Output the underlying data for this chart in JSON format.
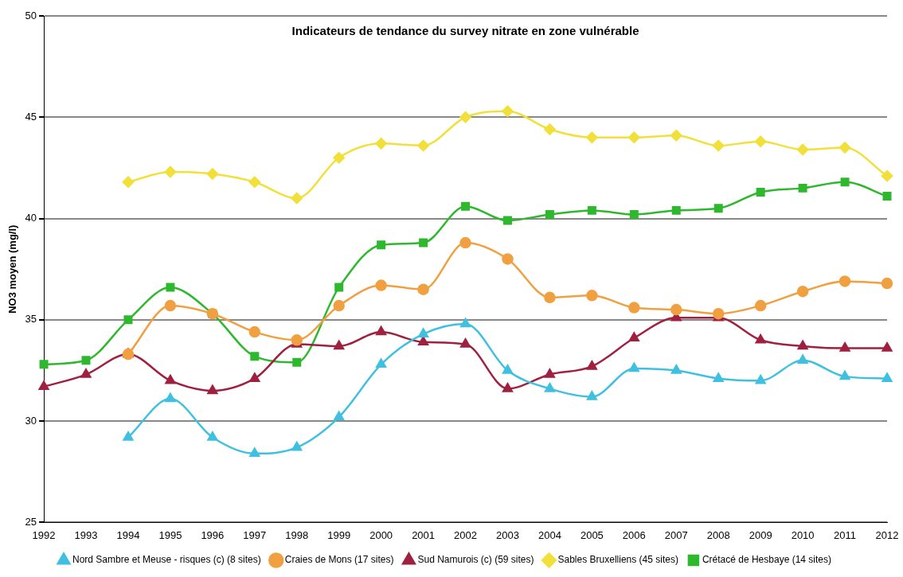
{
  "chart_data": {
    "type": "line",
    "title": "Indicateurs de tendance du survey nitrate en zone vulnérable",
    "ylabel": "NO3 moyen (mg/l)",
    "categories": [
      "1992",
      "1993",
      "1994",
      "1995",
      "1996",
      "1997",
      "1998",
      "1999",
      "2000",
      "2001",
      "2002",
      "2003",
      "2004",
      "2005",
      "2006",
      "2007",
      "2008",
      "2009",
      "2010",
      "2011",
      "2012"
    ],
    "series": [
      {
        "name": "Crétacé de Hesbaye (14 sites)",
        "color": "#2eb82e",
        "marker": "square",
        "values": [
          32.8,
          33.0,
          35.0,
          36.6,
          35.3,
          33.2,
          32.9,
          36.6,
          38.7,
          38.8,
          40.6,
          39.9,
          40.2,
          40.4,
          40.2,
          40.4,
          40.5,
          41.3,
          41.5,
          41.8,
          41.1
        ]
      },
      {
        "name": "Sables Bruxelliens (45 sites)",
        "color": "#f2e03a",
        "marker": "diamond",
        "values": [
          null,
          null,
          41.8,
          42.3,
          42.2,
          41.8,
          41.0,
          43.0,
          43.7,
          43.6,
          45.0,
          45.3,
          44.4,
          44.0,
          44.0,
          44.1,
          43.6,
          43.8,
          43.4,
          43.5,
          42.1
        ]
      },
      {
        "name": "Sud Namurois (c) (59 sites)",
        "color": "#a02040",
        "marker": "triangle",
        "values": [
          31.7,
          32.3,
          33.3,
          32.0,
          31.5,
          32.1,
          33.8,
          33.7,
          34.4,
          33.9,
          33.8,
          31.6,
          32.3,
          32.7,
          34.1,
          35.1,
          35.1,
          34.0,
          33.7,
          33.6,
          33.6
        ]
      },
      {
        "name": "Craies de Mons (17 sites)",
        "color": "#f0a040",
        "marker": "circle",
        "values": [
          null,
          null,
          33.3,
          35.7,
          35.3,
          34.4,
          34.0,
          35.7,
          36.7,
          36.5,
          38.8,
          38.0,
          36.1,
          36.2,
          35.6,
          35.5,
          35.3,
          35.7,
          36.4,
          36.9,
          36.8
        ]
      },
      {
        "name": "Nord Sambre et Meuse - risques (c) (8 sites)",
        "color": "#40c0e0",
        "marker": "triangle",
        "values": [
          null,
          null,
          29.2,
          31.1,
          29.2,
          28.4,
          28.7,
          30.2,
          32.8,
          34.3,
          34.8,
          32.5,
          31.6,
          31.2,
          32.6,
          32.5,
          32.1,
          32.0,
          33.0,
          32.2,
          32.1
        ]
      }
    ],
    "ylim": [
      25,
      50
    ],
    "yticks": [
      25,
      30,
      35,
      40,
      45,
      50
    ],
    "grid": "y",
    "legend": "bottom"
  }
}
